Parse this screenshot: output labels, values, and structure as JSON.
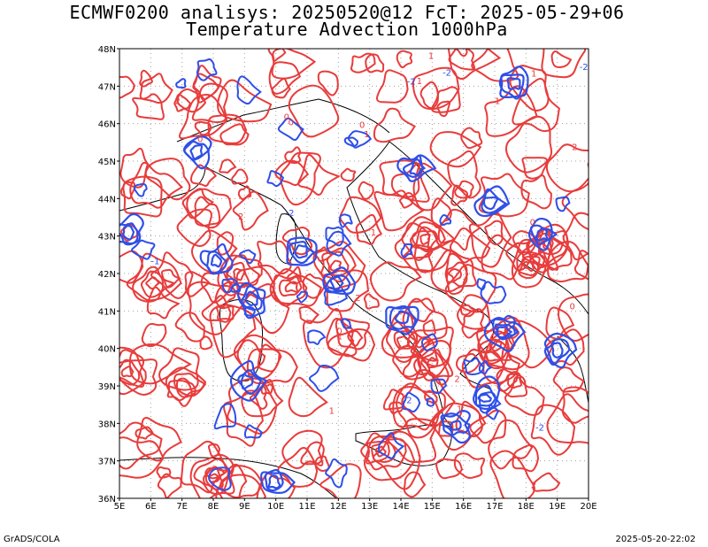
{
  "header": {
    "title_line1": "ECMWF0200 analisys: 20250520@12 FcT: 2025-05-29+06",
    "title_line2": "Temperature Advection 1000hPa"
  },
  "footer": {
    "left": "GrADS/COLA",
    "right": "2025-05-20-22:02"
  },
  "map": {
    "lon_range": [
      5,
      20
    ],
    "lat_range": [
      36,
      48
    ],
    "lon_ticks": [
      "5E",
      "6E",
      "7E",
      "8E",
      "9E",
      "10E",
      "11E",
      "12E",
      "13E",
      "14E",
      "15E",
      "16E",
      "17E",
      "18E",
      "19E",
      "20E"
    ],
    "lat_ticks": [
      "36N",
      "37N",
      "38N",
      "39N",
      "40N",
      "41N",
      "42N",
      "43N",
      "44N",
      "45N",
      "46N",
      "47N",
      "48N"
    ],
    "grid": true,
    "contour_colors": {
      "positive": "#e83c3c",
      "negative": "#2f4fe8",
      "coast": "#000000",
      "grid": "#a0a0a0"
    },
    "contour_labels": [
      "0",
      "-1",
      "1",
      "2",
      "-2"
    ]
  }
}
